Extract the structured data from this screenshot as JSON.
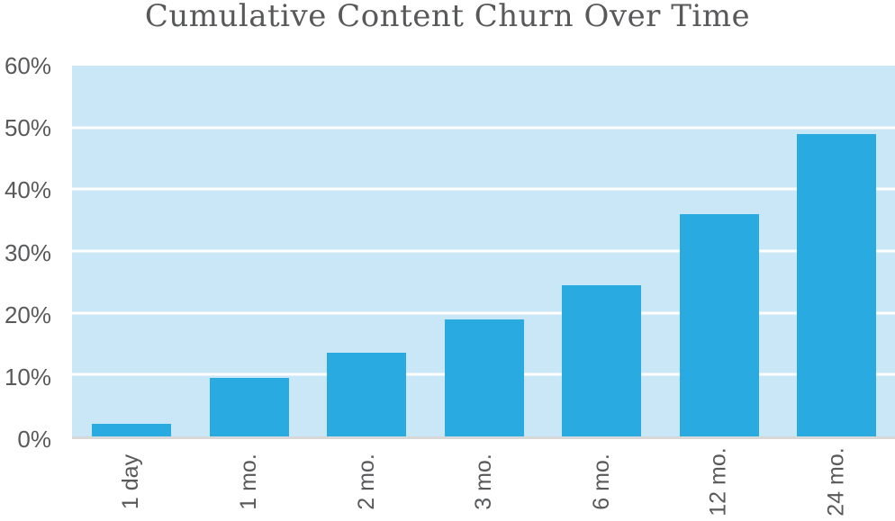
{
  "chart_data": {
    "type": "bar",
    "title": "Cumulative Content Churn Over Time",
    "categories": [
      "1 day",
      "1 mo.",
      "2 mo.",
      "3 mo.",
      "6 mo.",
      "12 mo.",
      "24 mo."
    ],
    "values": [
      2,
      9.5,
      13.5,
      19,
      24.5,
      36,
      49
    ],
    "unit": "%",
    "xlabel": "",
    "ylabel": "",
    "ylim": [
      0,
      60
    ],
    "y_tick_labels": [
      "0%",
      "10%",
      "20%",
      "30%",
      "40%",
      "50%",
      "60%"
    ],
    "grid": true,
    "gridline_interval": 10,
    "legend_position": "none",
    "colors": {
      "bar": "#29ABE2",
      "plot_background": "#C9E7F6",
      "gridline": "#FFFFFF",
      "axis_line": "#D8D8D8",
      "text": "#58595B"
    }
  }
}
